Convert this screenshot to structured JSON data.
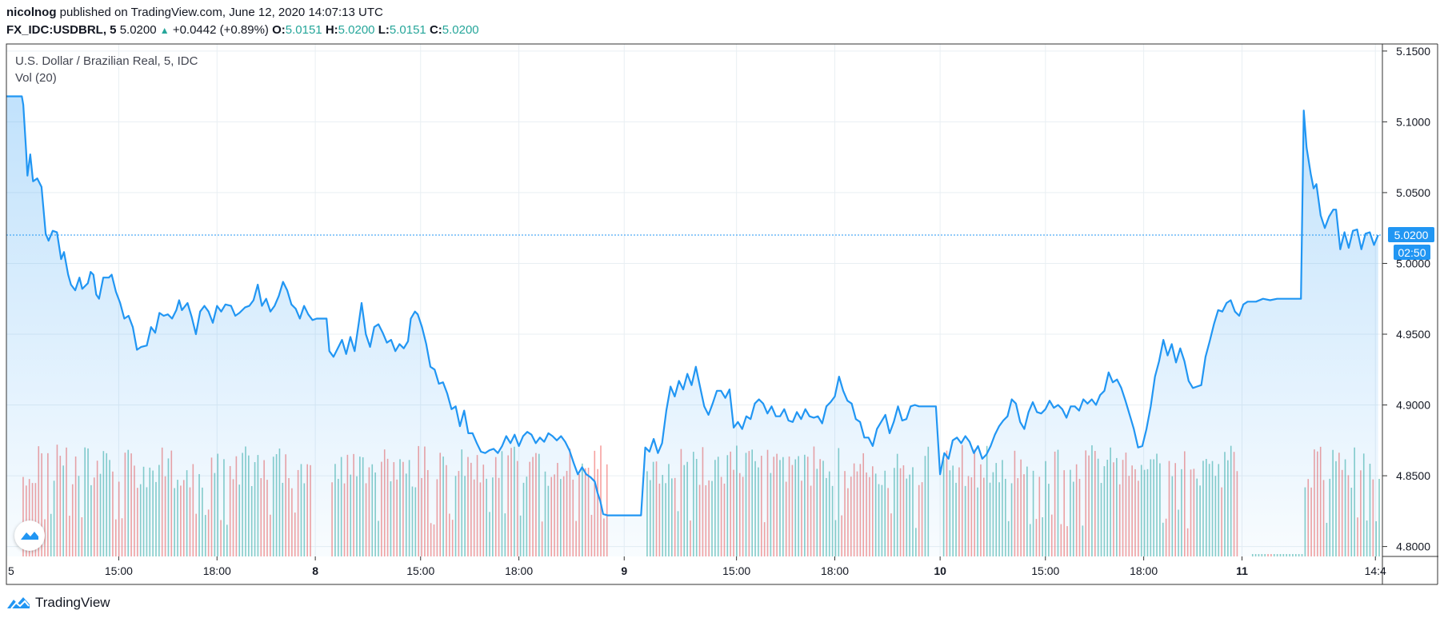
{
  "header": {
    "author": "nicolnog",
    "published_text": " published on TradingView.com, June 12, 2020 14:07:13 UTC",
    "symbol": "FX_IDC:USDBRL, 5",
    "last": "5.0200",
    "up_arrow": "▲",
    "change": "+0.0442 (+0.89%)",
    "o_label": "O:",
    "o_value": "5.0151",
    "h_label": "H:",
    "h_value": "5.0200",
    "l_label": "L:",
    "l_value": "5.0151",
    "c_label": "C:",
    "c_value": "5.0200"
  },
  "legend": {
    "title": "U.S. Dollar / Brazilian Real, 5, IDC",
    "volume": "Vol (20)"
  },
  "price_label": {
    "value": "5.0200",
    "countdown": "02:50"
  },
  "brand": {
    "name": "TradingView",
    "icon": "tradingview-logo-icon"
  },
  "colors": {
    "line": "#2196f3",
    "fill": "#2196f3",
    "vol_up": "#26a69a",
    "vol_down": "#ef5350",
    "grid": "#e9eff3",
    "axis_text": "#131722"
  },
  "chart_data": {
    "type": "area",
    "title": "U.S. Dollar / Brazilian Real, 5, IDC",
    "xlabel": "",
    "ylabel": "",
    "ylim": [
      4.793,
      5.155
    ],
    "x_range": [
      0,
      98
    ],
    "y_ticks": [
      "5.1500",
      "5.1000",
      "5.0500",
      "5.0000",
      "4.9500",
      "4.9000",
      "4.8500",
      "4.8000"
    ],
    "x_ticks": [
      {
        "label": "5",
        "x": 0.0,
        "bold": false
      },
      {
        "label": "15:00",
        "x": 8.0,
        "bold": false
      },
      {
        "label": "18:00",
        "x": 15.0,
        "bold": false
      },
      {
        "label": "8",
        "x": 22.0,
        "bold": true
      },
      {
        "label": "15:00",
        "x": 29.5,
        "bold": false
      },
      {
        "label": "18:00",
        "x": 36.5,
        "bold": false
      },
      {
        "label": "9",
        "x": 44.0,
        "bold": true
      },
      {
        "label": "15:00",
        "x": 52.0,
        "bold": false
      },
      {
        "label": "18:00",
        "x": 59.0,
        "bold": false
      },
      {
        "label": "10",
        "x": 66.5,
        "bold": true
      },
      {
        "label": "15:00",
        "x": 74.0,
        "bold": false
      },
      {
        "label": "18:00",
        "x": 81.0,
        "bold": false
      },
      {
        "label": "11",
        "x": 88.0,
        "bold": true
      },
      {
        "label": "14:4",
        "x": 97.5,
        "bold": false
      }
    ],
    "last_price": 5.02,
    "price_series": [
      [
        0,
        5.118
      ],
      [
        1.1,
        5.118
      ],
      [
        1.2,
        5.112
      ],
      [
        1.4,
        5.08
      ],
      [
        1.5,
        5.062
      ],
      [
        1.7,
        5.077
      ],
      [
        1.9,
        5.058
      ],
      [
        2.2,
        5.06
      ],
      [
        2.5,
        5.054
      ],
      [
        2.8,
        5.021
      ],
      [
        3.0,
        5.016
      ],
      [
        3.3,
        5.023
      ],
      [
        3.6,
        5.022
      ],
      [
        3.9,
        5.003
      ],
      [
        4.1,
        5.008
      ],
      [
        4.4,
        4.992
      ],
      [
        4.6,
        4.985
      ],
      [
        4.9,
        4.981
      ],
      [
        5.2,
        4.99
      ],
      [
        5.4,
        4.982
      ],
      [
        5.8,
        4.986
      ],
      [
        6.0,
        4.994
      ],
      [
        6.2,
        4.992
      ],
      [
        6.4,
        4.978
      ],
      [
        6.6,
        4.975
      ],
      [
        6.9,
        4.99
      ],
      [
        7.3,
        4.99
      ],
      [
        7.5,
        4.992
      ],
      [
        7.8,
        4.98
      ],
      [
        8.1,
        4.972
      ],
      [
        8.4,
        4.961
      ],
      [
        8.7,
        4.963
      ],
      [
        9.0,
        4.955
      ],
      [
        9.3,
        4.939
      ],
      [
        9.6,
        4.941
      ],
      [
        10.0,
        4.942
      ],
      [
        10.3,
        4.955
      ],
      [
        10.6,
        4.951
      ],
      [
        10.9,
        4.965
      ],
      [
        11.2,
        4.963
      ],
      [
        11.5,
        4.964
      ],
      [
        11.8,
        4.961
      ],
      [
        12.1,
        4.967
      ],
      [
        12.3,
        4.974
      ],
      [
        12.5,
        4.967
      ],
      [
        12.9,
        4.972
      ],
      [
        13.2,
        4.962
      ],
      [
        13.5,
        4.95
      ],
      [
        13.8,
        4.966
      ],
      [
        14.1,
        4.97
      ],
      [
        14.4,
        4.966
      ],
      [
        14.7,
        4.958
      ],
      [
        15.0,
        4.97
      ],
      [
        15.3,
        4.966
      ],
      [
        15.6,
        4.971
      ],
      [
        16.0,
        4.97
      ],
      [
        16.3,
        4.963
      ],
      [
        16.6,
        4.965
      ],
      [
        17.0,
        4.969
      ],
      [
        17.3,
        4.97
      ],
      [
        17.6,
        4.974
      ],
      [
        17.9,
        4.985
      ],
      [
        18.2,
        4.97
      ],
      [
        18.5,
        4.975
      ],
      [
        18.8,
        4.966
      ],
      [
        19.1,
        4.97
      ],
      [
        19.4,
        4.977
      ],
      [
        19.7,
        4.987
      ],
      [
        20.0,
        4.981
      ],
      [
        20.3,
        4.971
      ],
      [
        20.6,
        4.968
      ],
      [
        20.9,
        4.961
      ],
      [
        21.2,
        4.97
      ],
      [
        21.5,
        4.964
      ],
      [
        21.8,
        4.96
      ],
      [
        22.1,
        4.961
      ],
      [
        22.8,
        4.961
      ],
      [
        23.0,
        4.938
      ],
      [
        23.3,
        4.934
      ],
      [
        23.6,
        4.94
      ],
      [
        23.9,
        4.946
      ],
      [
        24.2,
        4.936
      ],
      [
        24.5,
        4.948
      ],
      [
        24.8,
        4.938
      ],
      [
        25.1,
        4.958
      ],
      [
        25.3,
        4.972
      ],
      [
        25.6,
        4.95
      ],
      [
        25.9,
        4.941
      ],
      [
        26.2,
        4.955
      ],
      [
        26.5,
        4.957
      ],
      [
        26.8,
        4.951
      ],
      [
        27.1,
        4.944
      ],
      [
        27.4,
        4.946
      ],
      [
        27.7,
        4.938
      ],
      [
        28.0,
        4.943
      ],
      [
        28.3,
        4.94
      ],
      [
        28.6,
        4.945
      ],
      [
        28.8,
        4.961
      ],
      [
        29.1,
        4.966
      ],
      [
        29.3,
        4.964
      ],
      [
        29.6,
        4.955
      ],
      [
        29.9,
        4.943
      ],
      [
        30.2,
        4.927
      ],
      [
        30.5,
        4.925
      ],
      [
        30.8,
        4.915
      ],
      [
        31.1,
        4.916
      ],
      [
        31.4,
        4.908
      ],
      [
        31.7,
        4.897
      ],
      [
        32.0,
        4.899
      ],
      [
        32.3,
        4.885
      ],
      [
        32.6,
        4.896
      ],
      [
        32.9,
        4.88
      ],
      [
        33.2,
        4.88
      ],
      [
        33.5,
        4.873
      ],
      [
        33.8,
        4.867
      ],
      [
        34.1,
        4.866
      ],
      [
        34.4,
        4.868
      ],
      [
        34.7,
        4.869
      ],
      [
        35.0,
        4.866
      ],
      [
        35.3,
        4.871
      ],
      [
        35.6,
        4.878
      ],
      [
        35.9,
        4.873
      ],
      [
        36.2,
        4.879
      ],
      [
        36.5,
        4.871
      ],
      [
        36.8,
        4.878
      ],
      [
        37.1,
        4.881
      ],
      [
        37.4,
        4.879
      ],
      [
        37.7,
        4.873
      ],
      [
        38.0,
        4.877
      ],
      [
        38.3,
        4.874
      ],
      [
        38.6,
        4.88
      ],
      [
        38.9,
        4.878
      ],
      [
        39.2,
        4.875
      ],
      [
        39.5,
        4.878
      ],
      [
        39.8,
        4.874
      ],
      [
        40.1,
        4.868
      ],
      [
        40.4,
        4.859
      ],
      [
        40.7,
        4.851
      ],
      [
        41.0,
        4.856
      ],
      [
        41.3,
        4.851
      ],
      [
        41.6,
        4.849
      ],
      [
        41.9,
        4.846
      ],
      [
        42.1,
        4.838
      ],
      [
        42.3,
        4.832
      ],
      [
        42.5,
        4.823
      ],
      [
        42.8,
        4.822
      ],
      [
        44.8,
        4.822
      ],
      [
        45.2,
        4.822
      ],
      [
        45.5,
        4.87
      ],
      [
        45.8,
        4.867
      ],
      [
        46.1,
        4.876
      ],
      [
        46.4,
        4.866
      ],
      [
        46.7,
        4.873
      ],
      [
        47.0,
        4.896
      ],
      [
        47.3,
        4.913
      ],
      [
        47.6,
        4.906
      ],
      [
        47.9,
        4.917
      ],
      [
        48.2,
        4.911
      ],
      [
        48.5,
        4.922
      ],
      [
        48.8,
        4.914
      ],
      [
        49.1,
        4.927
      ],
      [
        49.4,
        4.913
      ],
      [
        49.7,
        4.899
      ],
      [
        50.0,
        4.893
      ],
      [
        50.3,
        4.901
      ],
      [
        50.6,
        4.91
      ],
      [
        50.9,
        4.91
      ],
      [
        51.2,
        4.905
      ],
      [
        51.5,
        4.911
      ],
      [
        51.8,
        4.884
      ],
      [
        52.1,
        4.888
      ],
      [
        52.4,
        4.883
      ],
      [
        52.7,
        4.892
      ],
      [
        53.0,
        4.89
      ],
      [
        53.3,
        4.901
      ],
      [
        53.6,
        4.904
      ],
      [
        53.9,
        4.901
      ],
      [
        54.2,
        4.894
      ],
      [
        54.5,
        4.899
      ],
      [
        54.8,
        4.892
      ],
      [
        55.1,
        4.892
      ],
      [
        55.4,
        4.897
      ],
      [
        55.7,
        4.889
      ],
      [
        56.0,
        4.888
      ],
      [
        56.3,
        4.895
      ],
      [
        56.6,
        4.89
      ],
      [
        56.9,
        4.897
      ],
      [
        57.2,
        4.892
      ],
      [
        57.5,
        4.891
      ],
      [
        57.8,
        4.892
      ],
      [
        58.1,
        4.887
      ],
      [
        58.4,
        4.899
      ],
      [
        58.7,
        4.902
      ],
      [
        59.0,
        4.906
      ],
      [
        59.3,
        4.92
      ],
      [
        59.6,
        4.91
      ],
      [
        59.9,
        4.903
      ],
      [
        60.2,
        4.901
      ],
      [
        60.5,
        4.89
      ],
      [
        60.8,
        4.888
      ],
      [
        61.1,
        4.877
      ],
      [
        61.4,
        4.877
      ],
      [
        61.7,
        4.871
      ],
      [
        62.0,
        4.883
      ],
      [
        62.3,
        4.888
      ],
      [
        62.6,
        4.893
      ],
      [
        62.9,
        4.88
      ],
      [
        63.2,
        4.888
      ],
      [
        63.5,
        4.899
      ],
      [
        63.8,
        4.889
      ],
      [
        64.1,
        4.89
      ],
      [
        64.4,
        4.899
      ],
      [
        64.7,
        4.9
      ],
      [
        65.0,
        4.899
      ],
      [
        65.9,
        4.899
      ],
      [
        66.2,
        4.899
      ],
      [
        66.5,
        4.851
      ],
      [
        66.8,
        4.866
      ],
      [
        67.1,
        4.862
      ],
      [
        67.4,
        4.875
      ],
      [
        67.7,
        4.877
      ],
      [
        68.0,
        4.873
      ],
      [
        68.3,
        4.878
      ],
      [
        68.6,
        4.874
      ],
      [
        68.9,
        4.866
      ],
      [
        69.2,
        4.871
      ],
      [
        69.5,
        4.862
      ],
      [
        69.8,
        4.865
      ],
      [
        70.1,
        4.871
      ],
      [
        70.4,
        4.879
      ],
      [
        70.7,
        4.885
      ],
      [
        71.0,
        4.889
      ],
      [
        71.3,
        4.892
      ],
      [
        71.6,
        4.904
      ],
      [
        71.9,
        4.901
      ],
      [
        72.2,
        4.888
      ],
      [
        72.5,
        4.883
      ],
      [
        72.8,
        4.895
      ],
      [
        73.1,
        4.902
      ],
      [
        73.4,
        4.895
      ],
      [
        73.7,
        4.894
      ],
      [
        74.0,
        4.897
      ],
      [
        74.3,
        4.903
      ],
      [
        74.6,
        4.898
      ],
      [
        74.9,
        4.9
      ],
      [
        75.2,
        4.897
      ],
      [
        75.5,
        4.891
      ],
      [
        75.8,
        4.899
      ],
      [
        76.1,
        4.899
      ],
      [
        76.4,
        4.896
      ],
      [
        76.7,
        4.904
      ],
      [
        77.0,
        4.901
      ],
      [
        77.3,
        4.904
      ],
      [
        77.6,
        4.9
      ],
      [
        77.9,
        4.907
      ],
      [
        78.2,
        4.91
      ],
      [
        78.5,
        4.923
      ],
      [
        78.8,
        4.916
      ],
      [
        79.1,
        4.918
      ],
      [
        79.4,
        4.912
      ],
      [
        79.7,
        4.903
      ],
      [
        80.0,
        4.893
      ],
      [
        80.3,
        4.883
      ],
      [
        80.6,
        4.87
      ],
      [
        80.9,
        4.871
      ],
      [
        81.2,
        4.883
      ],
      [
        81.5,
        4.899
      ],
      [
        81.8,
        4.92
      ],
      [
        82.1,
        4.931
      ],
      [
        82.4,
        4.946
      ],
      [
        82.7,
        4.935
      ],
      [
        83.0,
        4.943
      ],
      [
        83.3,
        4.93
      ],
      [
        83.6,
        4.94
      ],
      [
        83.9,
        4.931
      ],
      [
        84.2,
        4.917
      ],
      [
        84.5,
        4.912
      ],
      [
        84.8,
        4.913
      ],
      [
        85.1,
        4.914
      ],
      [
        85.4,
        4.934
      ],
      [
        85.7,
        4.945
      ],
      [
        86.0,
        4.957
      ],
      [
        86.3,
        4.967
      ],
      [
        86.6,
        4.966
      ],
      [
        86.9,
        4.972
      ],
      [
        87.2,
        4.974
      ],
      [
        87.5,
        4.966
      ],
      [
        87.8,
        4.963
      ],
      [
        88.1,
        4.971
      ],
      [
        88.4,
        4.973
      ],
      [
        89.0,
        4.973
      ],
      [
        89.5,
        4.975
      ],
      [
        90.0,
        4.974
      ],
      [
        90.5,
        4.975
      ],
      [
        92.1,
        4.975
      ],
      [
        92.2,
        4.975
      ],
      [
        92.4,
        5.108
      ],
      [
        92.6,
        5.082
      ],
      [
        92.9,
        5.063
      ],
      [
        93.1,
        5.053
      ],
      [
        93.3,
        5.056
      ],
      [
        93.6,
        5.034
      ],
      [
        93.9,
        5.025
      ],
      [
        94.2,
        5.033
      ],
      [
        94.5,
        5.038
      ],
      [
        94.7,
        5.038
      ],
      [
        95.0,
        5.01
      ],
      [
        95.3,
        5.022
      ],
      [
        95.6,
        5.011
      ],
      [
        95.9,
        5.023
      ],
      [
        96.2,
        5.024
      ],
      [
        96.5,
        5.01
      ],
      [
        96.8,
        5.021
      ],
      [
        97.1,
        5.022
      ],
      [
        97.4,
        5.013
      ],
      [
        97.7,
        5.02
      ]
    ],
    "volume_gaps": [
      [
        21.8,
        23.0
      ],
      [
        42.9,
        45.5
      ],
      [
        65.8,
        66.6
      ],
      [
        87.8,
        88.6
      ],
      [
        88.6,
        92.3
      ]
    ]
  }
}
